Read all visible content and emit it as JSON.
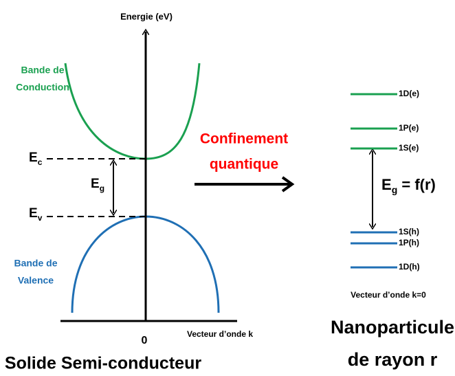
{
  "axis_y_label": "Energie (eV)",
  "conduction_band": [
    "Bande de",
    "Conduction"
  ],
  "valence_band": [
    "Bande de",
    "Valence"
  ],
  "Ec": {
    "main": "E",
    "sub": "c"
  },
  "Ev": {
    "main": "E",
    "sub": "v"
  },
  "Eg": {
    "main": "E",
    "sub": "g"
  },
  "origin": "0",
  "axis_x_label": "Vecteur d’onde k",
  "left_caption": "Solide Semi-conducteur",
  "arrow_label": [
    "Confinement",
    "quantique"
  ],
  "levels_e": [
    "1D(e)",
    "1P(e)",
    "1S(e)"
  ],
  "levels_h": [
    "1S(h)",
    "1P(h)",
    "1D(h)"
  ],
  "Eg_right": {
    "main": "E",
    "sub": "g",
    "rest": " = f(r)"
  },
  "right_axis_label": "Vecteur d’onde k=0",
  "right_caption": [
    "Nanoparticule",
    "de rayon r"
  ]
}
